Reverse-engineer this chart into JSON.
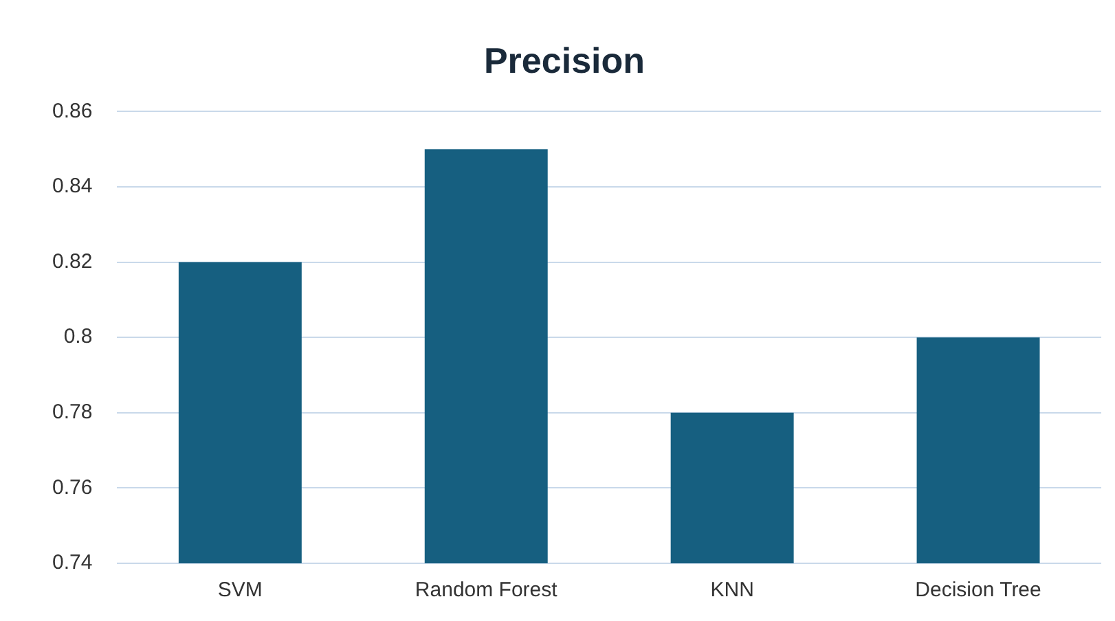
{
  "chart_data": {
    "type": "bar",
    "title": "Precision",
    "categories": [
      "SVM",
      "Random Forest",
      "KNN",
      "Decision Tree"
    ],
    "values": [
      0.82,
      0.85,
      0.78,
      0.8
    ],
    "color": "#165f80",
    "ylim": [
      0.74,
      0.86
    ],
    "yticks": [
      0.74,
      0.76,
      0.78,
      0.8,
      0.82,
      0.84,
      0.86
    ],
    "grid": "y"
  }
}
